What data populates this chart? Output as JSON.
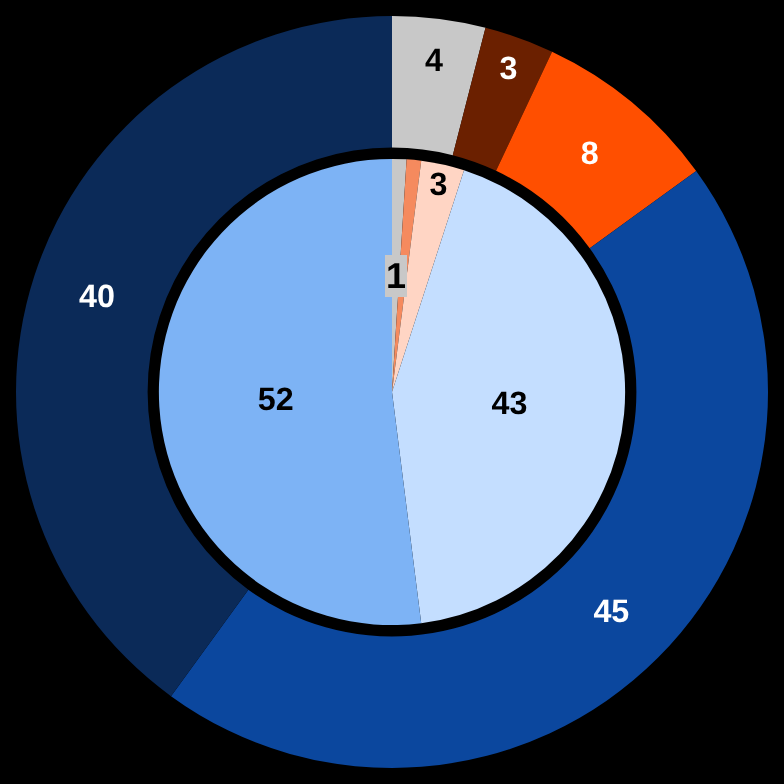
{
  "chart_data": {
    "type": "donut",
    "categories": [
      null,
      null,
      null,
      null,
      null
    ],
    "series": [
      {
        "values": [
          4,
          3,
          8,
          45,
          40
        ],
        "colors": [
          "#c8c8c8",
          "#6b2000",
          "#ff4f00",
          "#0b479e",
          "#0b2a58"
        ],
        "value_labels": [
          "4",
          "3",
          "8",
          "45",
          "40"
        ]
      },
      {
        "type": "pie",
        "values": [
          1,
          1,
          3,
          43,
          52
        ],
        "colors": [
          "#c8c8c8",
          "#f58a5e",
          "#ffd5c4",
          "#c4deff",
          "#7db3f5"
        ],
        "value_labels": [
          "1",
          null,
          "3",
          "43",
          "52"
        ]
      }
    ]
  }
}
